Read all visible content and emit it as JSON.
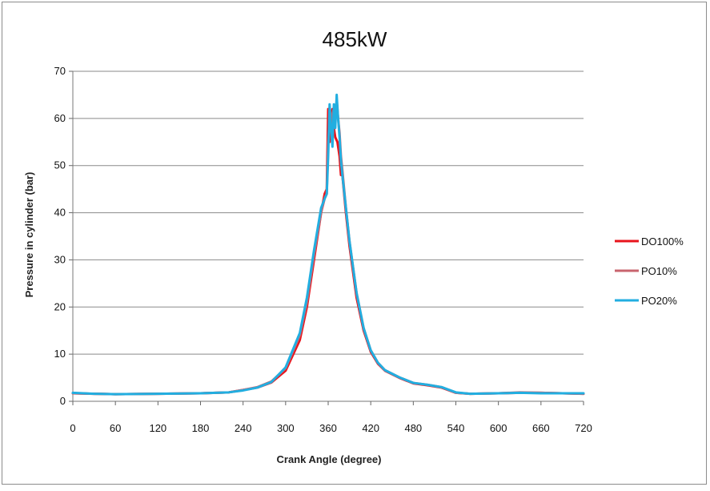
{
  "chart_data": {
    "type": "line",
    "title": "485kW",
    "xlabel": "Crank Angle (degree)",
    "ylabel": "Pressure in cylinder (bar)",
    "xlim": [
      0,
      720
    ],
    "ylim": [
      0,
      70
    ],
    "xticks": [
      0,
      60,
      120,
      180,
      240,
      300,
      360,
      420,
      480,
      540,
      600,
      660,
      720
    ],
    "yticks": [
      0,
      10,
      20,
      30,
      40,
      50,
      60,
      70
    ],
    "grid": "horizontal",
    "legend_position": "right",
    "series": [
      {
        "name": "DO100%",
        "color": "#e8141c",
        "points": [
          [
            0,
            1.7
          ],
          [
            30,
            1.6
          ],
          [
            60,
            1.5
          ],
          [
            120,
            1.6
          ],
          [
            180,
            1.7
          ],
          [
            220,
            1.9
          ],
          [
            240,
            2.4
          ],
          [
            260,
            2.9
          ],
          [
            280,
            4.0
          ],
          [
            300,
            6.5
          ],
          [
            320,
            13
          ],
          [
            330,
            20
          ],
          [
            340,
            30
          ],
          [
            350,
            40
          ],
          [
            355,
            44
          ],
          [
            358,
            45
          ],
          [
            360,
            62
          ],
          [
            362,
            55
          ],
          [
            364,
            60
          ],
          [
            366,
            62
          ],
          [
            368,
            58
          ],
          [
            370,
            56
          ],
          [
            373,
            55
          ],
          [
            376,
            52
          ],
          [
            378,
            48
          ],
          [
            380,
            48
          ],
          [
            385,
            40
          ],
          [
            390,
            33
          ],
          [
            400,
            22
          ],
          [
            410,
            15
          ],
          [
            420,
            10.5
          ],
          [
            430,
            8
          ],
          [
            440,
            6.5
          ],
          [
            460,
            5
          ],
          [
            480,
            3.8
          ],
          [
            500,
            3.4
          ],
          [
            520,
            2.9
          ],
          [
            540,
            1.8
          ],
          [
            560,
            1.6
          ],
          [
            600,
            1.7
          ],
          [
            630,
            1.8
          ],
          [
            660,
            1.8
          ],
          [
            690,
            1.7
          ],
          [
            720,
            1.6
          ]
        ]
      },
      {
        "name": "PO10%",
        "color": "#c8646e",
        "points": [
          [
            0,
            1.7
          ],
          [
            30,
            1.6
          ],
          [
            60,
            1.5
          ],
          [
            120,
            1.6
          ],
          [
            180,
            1.7
          ],
          [
            220,
            1.9
          ],
          [
            240,
            2.4
          ],
          [
            260,
            3.0
          ],
          [
            280,
            4.2
          ],
          [
            300,
            7.0
          ],
          [
            320,
            14
          ],
          [
            330,
            21
          ],
          [
            340,
            31
          ],
          [
            350,
            40
          ],
          [
            355,
            43
          ],
          [
            358,
            44
          ],
          [
            360,
            55
          ],
          [
            362,
            60
          ],
          [
            364,
            58
          ],
          [
            366,
            61
          ],
          [
            368,
            62
          ],
          [
            370,
            59
          ],
          [
            372,
            64
          ],
          [
            374,
            60
          ],
          [
            376,
            57
          ],
          [
            378,
            52
          ],
          [
            380,
            49
          ],
          [
            385,
            41
          ],
          [
            390,
            34
          ],
          [
            400,
            23
          ],
          [
            410,
            15.5
          ],
          [
            420,
            10.8
          ],
          [
            430,
            8.2
          ],
          [
            440,
            6.6
          ],
          [
            460,
            5.1
          ],
          [
            480,
            3.9
          ],
          [
            500,
            3.5
          ],
          [
            520,
            3.0
          ],
          [
            540,
            1.8
          ],
          [
            560,
            1.6
          ],
          [
            600,
            1.7
          ],
          [
            630,
            1.9
          ],
          [
            660,
            1.8
          ],
          [
            690,
            1.7
          ],
          [
            720,
            1.6
          ]
        ]
      },
      {
        "name": "PO20%",
        "color": "#22aee0",
        "points": [
          [
            0,
            1.8
          ],
          [
            30,
            1.6
          ],
          [
            60,
            1.5
          ],
          [
            120,
            1.6
          ],
          [
            180,
            1.7
          ],
          [
            220,
            1.9
          ],
          [
            240,
            2.3
          ],
          [
            260,
            2.9
          ],
          [
            280,
            4.1
          ],
          [
            300,
            7.2
          ],
          [
            320,
            14.5
          ],
          [
            330,
            22
          ],
          [
            340,
            32
          ],
          [
            350,
            41
          ],
          [
            355,
            43
          ],
          [
            358,
            44
          ],
          [
            360,
            52
          ],
          [
            362,
            63
          ],
          [
            364,
            58
          ],
          [
            366,
            54
          ],
          [
            368,
            63
          ],
          [
            370,
            58
          ],
          [
            372,
            65
          ],
          [
            374,
            60
          ],
          [
            376,
            56
          ],
          [
            378,
            51
          ],
          [
            380,
            48
          ],
          [
            385,
            41
          ],
          [
            390,
            34
          ],
          [
            400,
            23
          ],
          [
            410,
            15.5
          ],
          [
            420,
            10.8
          ],
          [
            430,
            8.2
          ],
          [
            440,
            6.6
          ],
          [
            460,
            5.1
          ],
          [
            480,
            3.9
          ],
          [
            500,
            3.5
          ],
          [
            520,
            3.0
          ],
          [
            540,
            1.9
          ],
          [
            560,
            1.6
          ],
          [
            600,
            1.7
          ],
          [
            630,
            1.8
          ],
          [
            660,
            1.7
          ],
          [
            690,
            1.7
          ],
          [
            720,
            1.7
          ]
        ]
      }
    ]
  }
}
